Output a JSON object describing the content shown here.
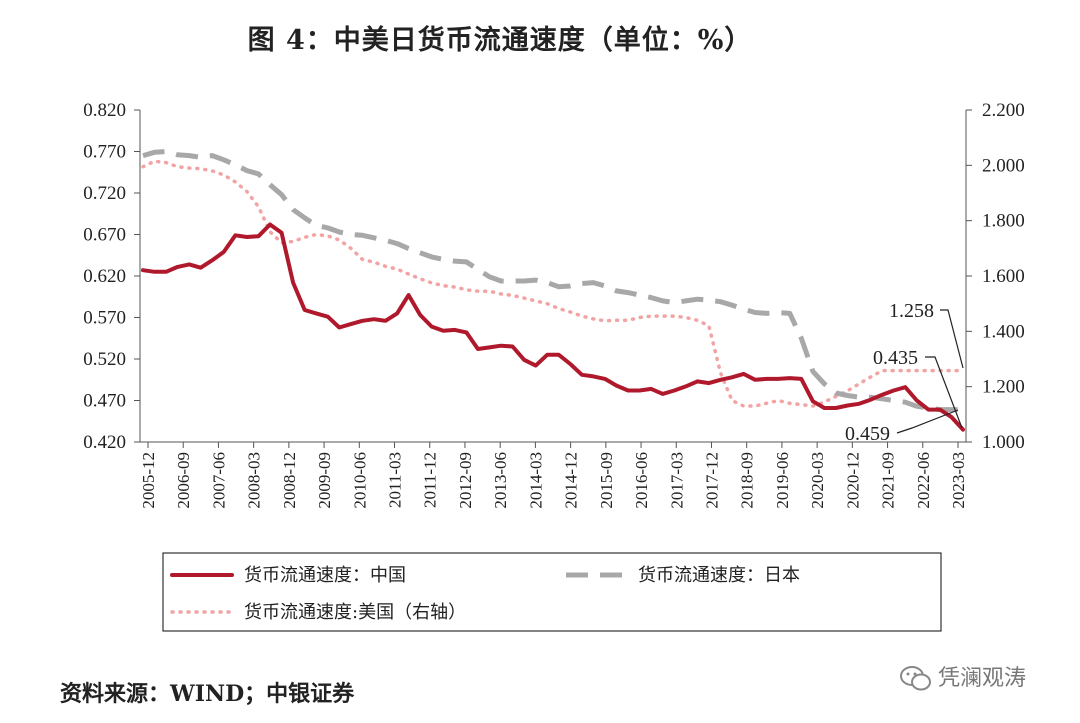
{
  "title": "图 4：中美日货币流通速度（单位：%）",
  "source": "资料来源：WIND；中银证券",
  "watermark": "凭澜观涛",
  "chart_data": {
    "type": "line",
    "x_labels": [
      "2005-12",
      "2006-09",
      "2007-06",
      "2008-03",
      "2008-12",
      "2009-09",
      "2010-06",
      "2011-03",
      "2011-12",
      "2012-09",
      "2013-06",
      "2014-03",
      "2014-12",
      "2015-09",
      "2016-06",
      "2017-03",
      "2017-12",
      "2018-09",
      "2019-06",
      "2020-03",
      "2020-12",
      "2021-09",
      "2022-06",
      "2023-03"
    ],
    "y_left": {
      "min": 0.42,
      "max": 0.82,
      "ticks": [
        "0.820",
        "0.770",
        "0.720",
        "0.670",
        "0.620",
        "0.570",
        "0.520",
        "0.470",
        "0.420"
      ]
    },
    "y_right": {
      "min": 1.0,
      "max": 2.2,
      "ticks": [
        "2.200",
        "2.000",
        "1.800",
        "1.600",
        "1.400",
        "1.200",
        "1.000"
      ]
    },
    "series": [
      {
        "name": "货币流通速度：中国",
        "axis": "left",
        "color": "#b0182b",
        "style": "solid",
        "values": [
          0.627,
          0.625,
          0.625,
          0.631,
          0.634,
          0.63,
          0.639,
          0.649,
          0.669,
          0.667,
          0.668,
          0.682,
          0.672,
          0.612,
          0.579,
          0.575,
          0.571,
          0.558,
          0.562,
          0.566,
          0.568,
          0.566,
          0.575,
          0.597,
          0.573,
          0.559,
          0.554,
          0.555,
          0.552,
          0.532,
          0.534,
          0.536,
          0.535,
          0.519,
          0.512,
          0.525,
          0.525,
          0.514,
          0.501,
          0.499,
          0.496,
          0.488,
          0.482,
          0.482,
          0.484,
          0.478,
          0.482,
          0.487,
          0.493,
          0.491,
          0.495,
          0.498,
          0.502,
          0.495,
          0.496,
          0.496,
          0.497,
          0.496,
          0.469,
          0.461,
          0.461,
          0.464,
          0.466,
          0.471,
          0.477,
          0.482,
          0.486,
          0.47,
          0.459,
          0.459,
          0.45,
          0.435
        ]
      },
      {
        "name": "货币流通速度：日本",
        "axis": "left",
        "color": "#a8a8a8",
        "style": "dashed",
        "values": [
          0.765,
          0.769,
          0.77,
          0.766,
          0.765,
          0.763,
          0.765,
          0.76,
          0.754,
          0.747,
          0.743,
          0.73,
          0.718,
          0.7,
          0.69,
          0.681,
          0.678,
          0.673,
          0.67,
          0.669,
          0.666,
          0.663,
          0.659,
          0.653,
          0.648,
          0.643,
          0.64,
          0.638,
          0.637,
          0.628,
          0.619,
          0.614,
          0.614,
          0.614,
          0.615,
          0.612,
          0.607,
          0.608,
          0.611,
          0.612,
          0.608,
          0.602,
          0.6,
          0.597,
          0.594,
          0.59,
          0.588,
          0.59,
          0.592,
          0.591,
          0.589,
          0.585,
          0.58,
          0.576,
          0.575,
          0.576,
          0.575,
          0.545,
          0.505,
          0.49,
          0.479,
          0.476,
          0.474,
          0.474,
          0.472,
          0.47,
          0.468,
          0.463,
          0.461,
          0.459,
          0.459,
          0.459
        ]
      },
      {
        "name": "货币流通速度:美国（右轴）",
        "axis": "right",
        "color": "#f2a3a3",
        "style": "dotted",
        "values": [
          1.995,
          2.015,
          2.01,
          1.995,
          1.99,
          1.988,
          1.98,
          1.965,
          1.94,
          1.905,
          1.85,
          1.76,
          1.72,
          1.725,
          1.74,
          1.75,
          1.745,
          1.73,
          1.7,
          1.66,
          1.65,
          1.635,
          1.625,
          1.607,
          1.59,
          1.575,
          1.565,
          1.56,
          1.55,
          1.545,
          1.545,
          1.535,
          1.53,
          1.52,
          1.51,
          1.5,
          1.482,
          1.47,
          1.455,
          1.445,
          1.438,
          1.44,
          1.44,
          1.45,
          1.455,
          1.455,
          1.455,
          1.45,
          1.44,
          1.42,
          1.25,
          1.15,
          1.13,
          1.13,
          1.14,
          1.15,
          1.14,
          1.135,
          1.13,
          1.145,
          1.165,
          1.185,
          1.21,
          1.235,
          1.258,
          1.258,
          1.258,
          1.258,
          1.258,
          1.258,
          1.258,
          1.258
        ]
      }
    ],
    "annotations": [
      "1.258",
      "0.435",
      "0.459"
    ],
    "legend": [
      "货币流通速度：中国",
      "货币流通速度：日本",
      "货币流通速度:美国（右轴）"
    ]
  }
}
